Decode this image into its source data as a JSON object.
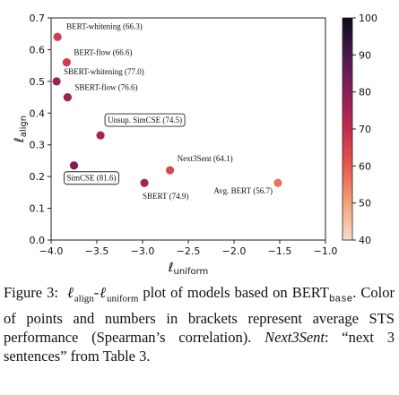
{
  "chart_data": {
    "type": "scatter",
    "xlabel": "ℓ",
    "xlabel_sub": "uniform",
    "ylabel": "ℓ",
    "ylabel_sub": "align",
    "xlim": [
      -4.0,
      -1.0
    ],
    "ylim": [
      0.0,
      0.7
    ],
    "xticks": [
      -4.0,
      -3.5,
      -3.0,
      -2.5,
      -2.0,
      -1.5,
      -1.0
    ],
    "xtick_labels": [
      "−4.0",
      "−3.5",
      "−3.0",
      "−2.5",
      "−2.0",
      "−1.5",
      "−1.0"
    ],
    "yticks": [
      0.0,
      0.1,
      0.2,
      0.3,
      0.4,
      0.5,
      0.6,
      0.7
    ],
    "ytick_labels": [
      "0.0",
      "0.1",
      "0.2",
      "0.3",
      "0.4",
      "0.5",
      "0.6",
      "0.7"
    ],
    "colorbar": {
      "min": 40,
      "max": 100,
      "ticks": [
        40,
        50,
        60,
        70,
        80,
        90,
        100
      ],
      "tick_labels": [
        "40",
        "50",
        "60",
        "70",
        "80",
        "90",
        "100"
      ],
      "colormap": "rocket_r",
      "stops": [
        "#f5e0c8",
        "#f2a27c",
        "#e85a4f",
        "#c42a4f",
        "#8a1e5a",
        "#4c1a4e",
        "#0a0a1a"
      ]
    },
    "points": [
      {
        "name": "BERT-whitening",
        "label": "BERT-whitening (66.3)",
        "x": -3.93,
        "y": 0.64,
        "score": 66.3,
        "boxed": false
      },
      {
        "name": "BERT-flow",
        "label": "BERT-flow (66.6)",
        "x": -3.83,
        "y": 0.56,
        "score": 66.6,
        "boxed": false
      },
      {
        "name": "SBERT-whitening",
        "label": "SBERT-whitening (77.0)",
        "x": -3.94,
        "y": 0.5,
        "score": 77.0,
        "boxed": false
      },
      {
        "name": "SBERT-flow",
        "label": "SBERT-flow (76.6)",
        "x": -3.82,
        "y": 0.45,
        "score": 76.6,
        "boxed": false
      },
      {
        "name": "Unsup. SimCSE",
        "label": "Unsup. SimCSE (74.5)",
        "x": -3.46,
        "y": 0.33,
        "score": 74.5,
        "boxed": true
      },
      {
        "name": "SimCSE",
        "label": "SimCSE (81.6)",
        "x": -3.75,
        "y": 0.235,
        "score": 81.6,
        "boxed": true
      },
      {
        "name": "Next3Sent",
        "label": "Next3Sent (64.1)",
        "x": -2.7,
        "y": 0.22,
        "score": 64.1,
        "boxed": false
      },
      {
        "name": "SBERT",
        "label": "SBERT (74.9)",
        "x": -2.98,
        "y": 0.18,
        "score": 74.9,
        "boxed": false
      },
      {
        "name": "Avg. BERT",
        "label": "Avg. BERT (56.7)",
        "x": -1.52,
        "y": 0.18,
        "score": 56.7,
        "boxed": false
      }
    ]
  },
  "caption": {
    "fig_label": "Figure 3:",
    "l1": "ℓ",
    "l1_sub": "align",
    "dash": "-",
    "l2": "ℓ",
    "l2_sub": "uniform",
    "t1": "plot of models based on",
    "bert": "BERT",
    "bert_sub": "base",
    "t2": ". Color of points and numbers in brackets represent average STS performance (Spearman’s correlation).",
    "next3": "Next3Sent",
    "t3": ": “next 3 sentences” from Table 3."
  }
}
